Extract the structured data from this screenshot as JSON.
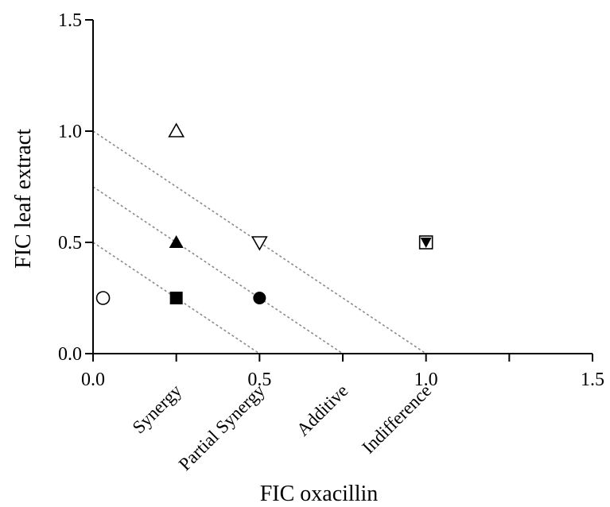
{
  "chart_data": {
    "type": "scatter",
    "title": "",
    "xlabel": "FIC oxacillin",
    "ylabel": "FIC leaf extract",
    "xlim": [
      0,
      1.5
    ],
    "ylim": [
      0,
      1.5
    ],
    "xticks": [
      "0.0",
      "0.5",
      "1.0",
      "1.5"
    ],
    "yticks": [
      "0.0",
      "0.5",
      "1.0",
      "1.5"
    ],
    "grid": false,
    "region_labels": [
      {
        "text": "Synergy",
        "x": 0.25
      },
      {
        "text": "Partial Synergy",
        "x": 0.5
      },
      {
        "text": "Additive",
        "x": 0.75
      },
      {
        "text": "Indifference",
        "x": 1.0
      }
    ],
    "reference_lines": [
      {
        "intercept": 0.5
      },
      {
        "intercept": 0.75
      },
      {
        "intercept": 1.0
      }
    ],
    "points": [
      {
        "x": 0.03,
        "y": 0.25,
        "marker": "circle-open"
      },
      {
        "x": 0.25,
        "y": 0.25,
        "marker": "square-filled"
      },
      {
        "x": 0.25,
        "y": 0.5,
        "marker": "triangle-up-filled"
      },
      {
        "x": 0.25,
        "y": 1.0,
        "marker": "triangle-up-open"
      },
      {
        "x": 0.5,
        "y": 0.25,
        "marker": "circle-filled"
      },
      {
        "x": 0.5,
        "y": 0.5,
        "marker": "triangle-down-open"
      },
      {
        "x": 1.0,
        "y": 0.5,
        "marker": "square-open"
      },
      {
        "x": 1.0,
        "y": 0.5,
        "marker": "triangle-down-filled"
      }
    ]
  }
}
